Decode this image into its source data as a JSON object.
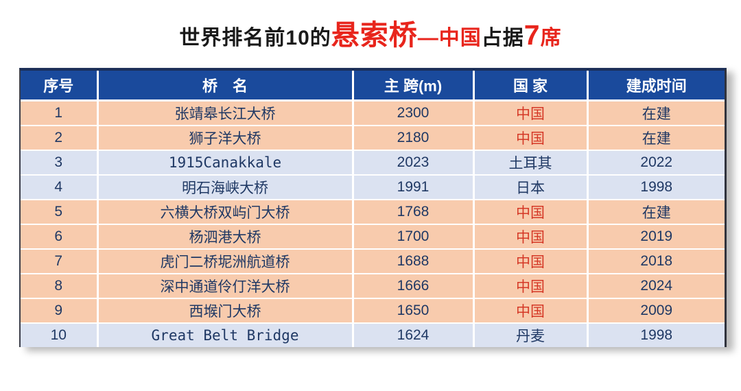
{
  "title": {
    "segments": [
      {
        "text": "世界排名前10的",
        "cls": "t-blk"
      },
      {
        "text": "悬索桥",
        "cls": "t-red sz-l"
      },
      {
        "text": "—中国",
        "cls": "t-red"
      },
      {
        "text": "占据",
        "cls": "t-blk"
      },
      {
        "text": "7",
        "cls": "t-red sz-l"
      },
      {
        "text": "席",
        "cls": "t-red"
      }
    ]
  },
  "table": {
    "columns": [
      "序号",
      "桥　名",
      "主 跨(m)",
      "国 家",
      "建成时间"
    ],
    "rows": [
      {
        "rank": "1",
        "name": "张靖皋长江大桥",
        "span": "2300",
        "country": "中国",
        "year": "在建",
        "row_style": "peach",
        "country_style": "red",
        "name_style": ""
      },
      {
        "rank": "2",
        "name": "狮子洋大桥",
        "span": "2180",
        "country": "中国",
        "year": "在建",
        "row_style": "peach",
        "country_style": "red",
        "name_style": ""
      },
      {
        "rank": "3",
        "name": "1915Canakkale",
        "span": "2023",
        "country": "土耳其",
        "year": "2022",
        "row_style": "blue",
        "country_style": "",
        "name_style": "latin"
      },
      {
        "rank": "4",
        "name": "明石海峡大桥",
        "span": "1991",
        "country": "日本",
        "year": "1998",
        "row_style": "blue",
        "country_style": "",
        "name_style": ""
      },
      {
        "rank": "5",
        "name": "六横大桥双屿门大桥",
        "span": "1768",
        "country": "中国",
        "year": "在建",
        "row_style": "peach",
        "country_style": "red",
        "name_style": ""
      },
      {
        "rank": "6",
        "name": "杨泗港大桥",
        "span": "1700",
        "country": "中国",
        "year": "2019",
        "row_style": "peach",
        "country_style": "red",
        "name_style": ""
      },
      {
        "rank": "7",
        "name": "虎门二桥坭洲航道桥",
        "span": "1688",
        "country": "中国",
        "year": "2018",
        "row_style": "peach",
        "country_style": "red",
        "name_style": ""
      },
      {
        "rank": "8",
        "name": "深中通道伶仃洋大桥",
        "span": "1666",
        "country": "中国",
        "year": "2024",
        "row_style": "peach",
        "country_style": "red",
        "name_style": ""
      },
      {
        "rank": "9",
        "name": "西堠门大桥",
        "span": "1650",
        "country": "中国",
        "year": "2009",
        "row_style": "peach",
        "country_style": "red",
        "name_style": ""
      },
      {
        "rank": "10",
        "name": "Great Belt Bridge",
        "span": "1624",
        "country": "丹麦",
        "year": "1998",
        "row_style": "blue",
        "country_style": "",
        "name_style": "latin"
      }
    ]
  },
  "colors": {
    "header_bg": "#1a4a9c",
    "header_text": "#ffffff",
    "row_peach": "#f8cbad",
    "row_blue": "#dbe2f1",
    "cell_text": "#1f3864",
    "china_red": "#d53826",
    "title_red": "#e8251c",
    "title_black": "#1a1a1a",
    "divider": "#ffffff"
  }
}
